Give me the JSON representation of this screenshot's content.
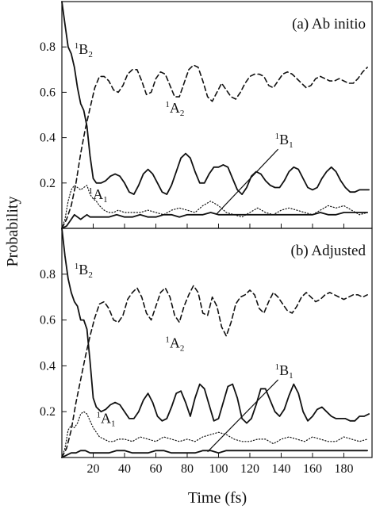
{
  "figure": {
    "ylabel": "Probability",
    "xlabel": "Time (fs)"
  },
  "chart_data": [
    {
      "type": "line",
      "panel": "top",
      "title": "(a)  Ab initio",
      "xlim": [
        0,
        198
      ],
      "ylim": [
        0,
        1.0
      ],
      "x_ticks": [
        20,
        40,
        60,
        80,
        100,
        120,
        140,
        160,
        180
      ],
      "y_ticks": [
        0.2,
        0.4,
        0.6,
        0.8
      ],
      "y_tick_labels": [
        "0.2",
        "0.4",
        "0.6",
        "0.8"
      ],
      "x_tick_labels_shown": false,
      "series": [
        {
          "name": "1B2",
          "style": "solid",
          "x": [
            0,
            2,
            4,
            6,
            8,
            10,
            12,
            14,
            16,
            18,
            20,
            22,
            25,
            28,
            31,
            34,
            37,
            40,
            43,
            46,
            49,
            52,
            55,
            58,
            61,
            64,
            67,
            70,
            73,
            76,
            79,
            82,
            85,
            88,
            91,
            94,
            97,
            100,
            103,
            106,
            109,
            112,
            115,
            118,
            121,
            124,
            127,
            130,
            133,
            136,
            139,
            142,
            145,
            148,
            151,
            154,
            157,
            160,
            163,
            166,
            169,
            172,
            175,
            178,
            181,
            184,
            187,
            190,
            193,
            196
          ],
          "y": [
            1.0,
            0.9,
            0.8,
            0.77,
            0.71,
            0.62,
            0.55,
            0.52,
            0.45,
            0.32,
            0.22,
            0.2,
            0.2,
            0.21,
            0.23,
            0.24,
            0.23,
            0.2,
            0.16,
            0.15,
            0.19,
            0.24,
            0.26,
            0.24,
            0.2,
            0.16,
            0.15,
            0.19,
            0.25,
            0.31,
            0.33,
            0.31,
            0.25,
            0.2,
            0.2,
            0.24,
            0.27,
            0.27,
            0.28,
            0.27,
            0.22,
            0.17,
            0.15,
            0.18,
            0.23,
            0.25,
            0.24,
            0.21,
            0.19,
            0.18,
            0.18,
            0.21,
            0.25,
            0.27,
            0.26,
            0.22,
            0.18,
            0.17,
            0.18,
            0.22,
            0.25,
            0.27,
            0.25,
            0.21,
            0.18,
            0.16,
            0.16,
            0.17,
            0.17,
            0.17
          ]
        },
        {
          "name": "1A2",
          "style": "dashed",
          "x": [
            0,
            3,
            6,
            9,
            12,
            15,
            18,
            21,
            24,
            27,
            30,
            33,
            36,
            39,
            42,
            45,
            48,
            51,
            54,
            57,
            60,
            63,
            66,
            69,
            72,
            75,
            78,
            81,
            84,
            87,
            90,
            93,
            96,
            99,
            102,
            105,
            108,
            111,
            114,
            117,
            120,
            123,
            126,
            129,
            132,
            135,
            138,
            141,
            144,
            147,
            150,
            153,
            156,
            159,
            162,
            165,
            168,
            171,
            174,
            177,
            180,
            183,
            186,
            189,
            192,
            195
          ],
          "y": [
            0.0,
            0.04,
            0.1,
            0.2,
            0.33,
            0.44,
            0.53,
            0.62,
            0.67,
            0.67,
            0.65,
            0.61,
            0.6,
            0.63,
            0.68,
            0.7,
            0.7,
            0.65,
            0.59,
            0.6,
            0.66,
            0.69,
            0.68,
            0.63,
            0.58,
            0.58,
            0.64,
            0.7,
            0.72,
            0.71,
            0.65,
            0.58,
            0.56,
            0.6,
            0.64,
            0.61,
            0.58,
            0.57,
            0.6,
            0.64,
            0.67,
            0.68,
            0.68,
            0.67,
            0.63,
            0.62,
            0.65,
            0.68,
            0.69,
            0.68,
            0.66,
            0.64,
            0.62,
            0.63,
            0.66,
            0.67,
            0.66,
            0.65,
            0.65,
            0.66,
            0.65,
            0.64,
            0.64,
            0.66,
            0.69,
            0.71
          ]
        },
        {
          "name": "1A1",
          "style": "dotted",
          "x": [
            0,
            2,
            4,
            6,
            8,
            10,
            12,
            14,
            16,
            18,
            20,
            22,
            24,
            27,
            30,
            33,
            36,
            40,
            45,
            50,
            55,
            60,
            65,
            70,
            75,
            80,
            85,
            90,
            95,
            100,
            105,
            110,
            115,
            120,
            125,
            130,
            135,
            140,
            145,
            150,
            155,
            160,
            165,
            170,
            175,
            180,
            185,
            190,
            195
          ],
          "y": [
            0.0,
            0.04,
            0.12,
            0.17,
            0.19,
            0.18,
            0.17,
            0.18,
            0.19,
            0.15,
            0.13,
            0.12,
            0.1,
            0.08,
            0.07,
            0.07,
            0.08,
            0.07,
            0.07,
            0.07,
            0.08,
            0.07,
            0.06,
            0.08,
            0.09,
            0.08,
            0.07,
            0.1,
            0.12,
            0.1,
            0.07,
            0.06,
            0.05,
            0.07,
            0.09,
            0.07,
            0.06,
            0.08,
            0.09,
            0.08,
            0.07,
            0.06,
            0.08,
            0.1,
            0.09,
            0.1,
            0.08,
            0.06,
            0.07
          ]
        },
        {
          "name": "1B1",
          "style": "solid",
          "x": [
            0,
            3,
            6,
            8,
            10,
            12,
            14,
            16,
            18,
            20,
            25,
            30,
            35,
            40,
            45,
            50,
            55,
            60,
            65,
            70,
            75,
            80,
            85,
            90,
            95,
            100,
            105,
            110,
            115,
            120,
            125,
            130,
            135,
            140,
            145,
            150,
            155,
            160,
            165,
            170,
            175,
            180,
            185,
            190,
            195
          ],
          "y": [
            0.0,
            0.01,
            0.04,
            0.06,
            0.05,
            0.04,
            0.05,
            0.06,
            0.05,
            0.05,
            0.05,
            0.05,
            0.06,
            0.05,
            0.05,
            0.06,
            0.05,
            0.05,
            0.06,
            0.06,
            0.05,
            0.06,
            0.06,
            0.06,
            0.07,
            0.06,
            0.06,
            0.06,
            0.06,
            0.06,
            0.06,
            0.06,
            0.06,
            0.06,
            0.06,
            0.06,
            0.06,
            0.06,
            0.07,
            0.06,
            0.06,
            0.07,
            0.07,
            0.07,
            0.07
          ]
        }
      ],
      "annotations": [
        {
          "label": "1B2",
          "at": [
            8,
            0.77
          ]
        },
        {
          "label": "1A2",
          "at": [
            66,
            0.51
          ]
        },
        {
          "label": "1A1",
          "at": [
            17,
            0.13
          ]
        },
        {
          "label": "1B1",
          "at": [
            136,
            0.37
          ],
          "pointer_to": [
            99,
            0.065
          ]
        }
      ]
    },
    {
      "type": "line",
      "panel": "bottom",
      "title": "(b)  Adjusted",
      "xlim": [
        0,
        198
      ],
      "ylim": [
        0,
        1.0
      ],
      "x_ticks": [
        20,
        40,
        60,
        80,
        100,
        120,
        140,
        160,
        180
      ],
      "x_tick_labels": [
        "20",
        "40",
        "60",
        "80",
        "100",
        "120",
        "140",
        "160",
        "180"
      ],
      "y_ticks": [
        0.2,
        0.4,
        0.6,
        0.8
      ],
      "y_tick_labels": [
        "0.2",
        "0.4",
        "0.6",
        "0.8"
      ],
      "series": [
        {
          "name": "1B2",
          "style": "solid",
          "x": [
            0,
            2,
            4,
            6,
            8,
            10,
            12,
            14,
            16,
            18,
            20,
            22,
            25,
            28,
            31,
            34,
            37,
            40,
            43,
            46,
            49,
            52,
            55,
            58,
            61,
            64,
            67,
            70,
            73,
            76,
            79,
            82,
            85,
            88,
            91,
            94,
            97,
            100,
            103,
            106,
            109,
            112,
            115,
            118,
            121,
            124,
            127,
            130,
            133,
            136,
            139,
            142,
            145,
            148,
            151,
            154,
            157,
            160,
            163,
            166,
            169,
            172,
            175,
            178,
            181,
            184,
            187,
            190,
            193,
            196
          ],
          "y": [
            1.0,
            0.88,
            0.78,
            0.72,
            0.68,
            0.66,
            0.6,
            0.6,
            0.56,
            0.42,
            0.26,
            0.22,
            0.2,
            0.21,
            0.23,
            0.24,
            0.23,
            0.2,
            0.17,
            0.17,
            0.2,
            0.25,
            0.28,
            0.24,
            0.18,
            0.16,
            0.17,
            0.22,
            0.28,
            0.29,
            0.24,
            0.18,
            0.26,
            0.32,
            0.3,
            0.23,
            0.16,
            0.17,
            0.24,
            0.31,
            0.32,
            0.26,
            0.17,
            0.15,
            0.17,
            0.23,
            0.3,
            0.3,
            0.25,
            0.2,
            0.18,
            0.21,
            0.27,
            0.32,
            0.28,
            0.2,
            0.16,
            0.18,
            0.21,
            0.22,
            0.2,
            0.18,
            0.17,
            0.17,
            0.17,
            0.16,
            0.16,
            0.18,
            0.18,
            0.19
          ]
        },
        {
          "name": "1A2",
          "style": "dashed",
          "x": [
            0,
            3,
            6,
            9,
            12,
            15,
            18,
            21,
            24,
            27,
            30,
            33,
            36,
            39,
            42,
            45,
            48,
            51,
            54,
            57,
            60,
            63,
            66,
            69,
            72,
            75,
            78,
            81,
            84,
            87,
            90,
            93,
            96,
            99,
            102,
            105,
            108,
            111,
            114,
            117,
            120,
            123,
            126,
            129,
            132,
            135,
            138,
            141,
            144,
            147,
            150,
            153,
            156,
            159,
            162,
            165,
            168,
            171,
            174,
            177,
            180,
            183,
            186,
            189,
            192,
            195
          ],
          "y": [
            0.0,
            0.04,
            0.12,
            0.24,
            0.34,
            0.44,
            0.53,
            0.61,
            0.67,
            0.68,
            0.65,
            0.6,
            0.59,
            0.62,
            0.69,
            0.72,
            0.74,
            0.7,
            0.63,
            0.6,
            0.66,
            0.72,
            0.74,
            0.7,
            0.62,
            0.59,
            0.66,
            0.71,
            0.75,
            0.72,
            0.63,
            0.62,
            0.7,
            0.66,
            0.57,
            0.53,
            0.59,
            0.67,
            0.7,
            0.71,
            0.73,
            0.71,
            0.65,
            0.63,
            0.68,
            0.72,
            0.7,
            0.67,
            0.64,
            0.63,
            0.66,
            0.7,
            0.72,
            0.7,
            0.68,
            0.69,
            0.71,
            0.72,
            0.71,
            0.7,
            0.69,
            0.7,
            0.71,
            0.71,
            0.7,
            0.71
          ]
        },
        {
          "name": "1A1",
          "style": "dotted",
          "x": [
            0,
            2,
            4,
            6,
            8,
            10,
            12,
            14,
            16,
            18,
            20,
            22,
            24,
            27,
            30,
            33,
            36,
            40,
            45,
            50,
            55,
            60,
            65,
            70,
            75,
            80,
            85,
            90,
            95,
            100,
            105,
            110,
            115,
            120,
            125,
            130,
            135,
            140,
            145,
            150,
            155,
            160,
            165,
            170,
            175,
            180,
            185,
            190,
            195
          ],
          "y": [
            0.0,
            0.04,
            0.12,
            0.14,
            0.13,
            0.15,
            0.19,
            0.2,
            0.19,
            0.16,
            0.13,
            0.11,
            0.09,
            0.08,
            0.07,
            0.07,
            0.08,
            0.08,
            0.07,
            0.09,
            0.08,
            0.07,
            0.09,
            0.08,
            0.07,
            0.08,
            0.07,
            0.09,
            0.1,
            0.11,
            0.1,
            0.08,
            0.07,
            0.07,
            0.08,
            0.08,
            0.06,
            0.08,
            0.09,
            0.08,
            0.07,
            0.09,
            0.08,
            0.07,
            0.07,
            0.09,
            0.08,
            0.07,
            0.08
          ]
        },
        {
          "name": "1B1",
          "style": "solid",
          "x": [
            0,
            3,
            6,
            9,
            12,
            15,
            18,
            20,
            25,
            30,
            35,
            40,
            45,
            50,
            55,
            60,
            65,
            70,
            75,
            80,
            85,
            90,
            95,
            100,
            105,
            110,
            115,
            120,
            125,
            130,
            135,
            140,
            145,
            150,
            155,
            160,
            165,
            170,
            175,
            180,
            185,
            190,
            195
          ],
          "y": [
            0.0,
            0.01,
            0.02,
            0.02,
            0.03,
            0.03,
            0.02,
            0.02,
            0.02,
            0.02,
            0.03,
            0.03,
            0.02,
            0.02,
            0.02,
            0.03,
            0.03,
            0.02,
            0.02,
            0.02,
            0.02,
            0.03,
            0.03,
            0.02,
            0.03,
            0.03,
            0.03,
            0.03,
            0.03,
            0.03,
            0.03,
            0.03,
            0.03,
            0.03,
            0.03,
            0.03,
            0.03,
            0.03,
            0.03,
            0.03,
            0.03,
            0.03,
            0.03
          ]
        }
      ],
      "annotations": [
        {
          "label": "1B2",
          "at": [
            8,
            0.8
          ]
        },
        {
          "label": "1A2",
          "at": [
            66,
            0.48
          ]
        },
        {
          "label": "1A1",
          "at": [
            22,
            0.15
          ]
        },
        {
          "label": "1B1",
          "at": [
            136,
            0.36
          ],
          "pointer_to": [
            93,
            0.025
          ]
        }
      ]
    }
  ]
}
